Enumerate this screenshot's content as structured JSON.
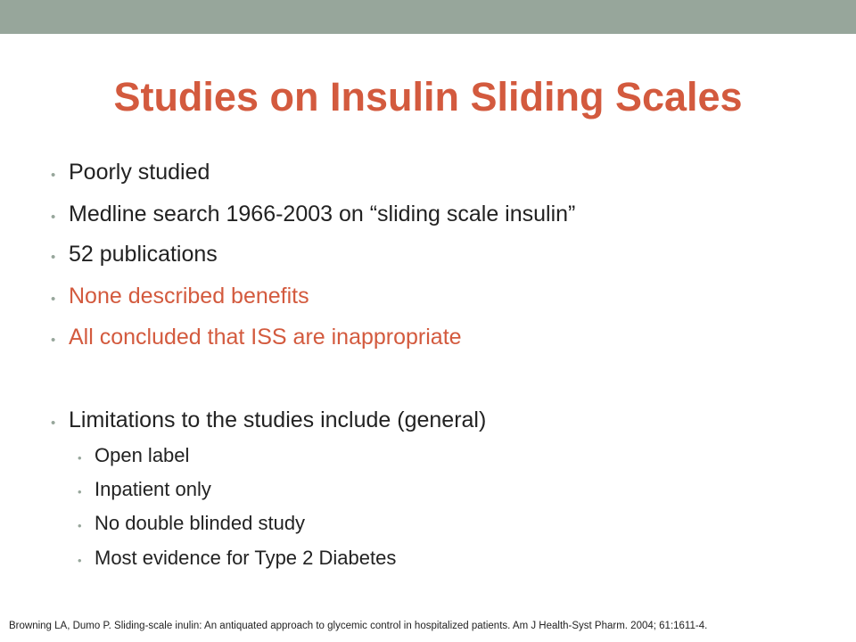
{
  "slide": {
    "title": "Studies on Insulin Sliding Scales",
    "bullets": [
      {
        "text": "Poorly studied"
      },
      {
        "text": "Medline search 1966-2003 on “sliding scale insulin”"
      },
      {
        "text": "52 publications"
      },
      {
        "text": "None described benefits"
      },
      {
        "text": "All concluded that ISS are inappropriate"
      },
      {
        "text": "Limitations to the studies include (general)"
      }
    ],
    "sub_bullets": [
      {
        "text": "Open label"
      },
      {
        "text": "Inpatient only"
      },
      {
        "text": "No double blinded study"
      },
      {
        "text": "Most evidence for Type 2 Diabetes"
      }
    ],
    "citation": "Browning LA, Dumo P. Sliding-scale inulin: An antiquated approach to glycemic control in hospitalized patients. Am J Health-Syst Pharm. 2004; 61:1611-4.",
    "bullet_glyph": "•"
  },
  "colors": {
    "accent": "#d35a3e",
    "top_bar": "#97a69b",
    "text": "#222222",
    "background": "#ffffff"
  }
}
